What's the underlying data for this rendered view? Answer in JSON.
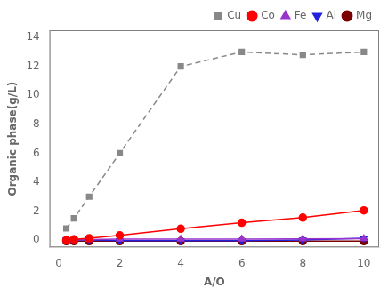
{
  "chart_data": {
    "type": "line",
    "xlabel": "A/O",
    "ylabel": "Organic phase(g/L)",
    "x": [
      0.25,
      0.5,
      1,
      2,
      4,
      6,
      8,
      10
    ],
    "series": [
      {
        "name": "Cu",
        "color": "#888888",
        "marker": "square",
        "line_style": "dashed",
        "values": [
          0.8,
          1.5,
          3.0,
          6.0,
          12.0,
          13.0,
          12.8,
          13.0
        ]
      },
      {
        "name": "Co",
        "color": "red",
        "marker": "circle",
        "line_style": "solid",
        "values": [
          0.0,
          0.05,
          0.12,
          0.32,
          0.78,
          1.2,
          1.55,
          2.05
        ]
      },
      {
        "name": "Fe",
        "color": "#9933cc",
        "marker": "triangle-up",
        "line_style": "solid",
        "values": [
          0.0,
          0.02,
          0.04,
          0.06,
          0.06,
          0.07,
          0.08,
          0.1
        ]
      },
      {
        "name": "Al",
        "color": "#2222dd",
        "marker": "triangle-down",
        "line_style": "solid",
        "values": [
          0.0,
          0.0,
          0.0,
          -0.04,
          -0.04,
          -0.04,
          0.0,
          0.12
        ]
      },
      {
        "name": "Mg",
        "color": "#7B0000",
        "marker": "circle",
        "line_style": "solid",
        "values": [
          -0.08,
          -0.08,
          -0.08,
          -0.08,
          -0.08,
          -0.08,
          -0.08,
          -0.08
        ]
      }
    ],
    "xlim": [
      -0.3,
      10.5
    ],
    "ylim": [
      -0.5,
      14.5
    ],
    "xticks": [
      0,
      2,
      4,
      6,
      8,
      10
    ],
    "yticks": [
      0,
      2,
      4,
      6,
      8,
      10,
      12,
      14
    ],
    "grid": false,
    "legend": "upper right"
  }
}
